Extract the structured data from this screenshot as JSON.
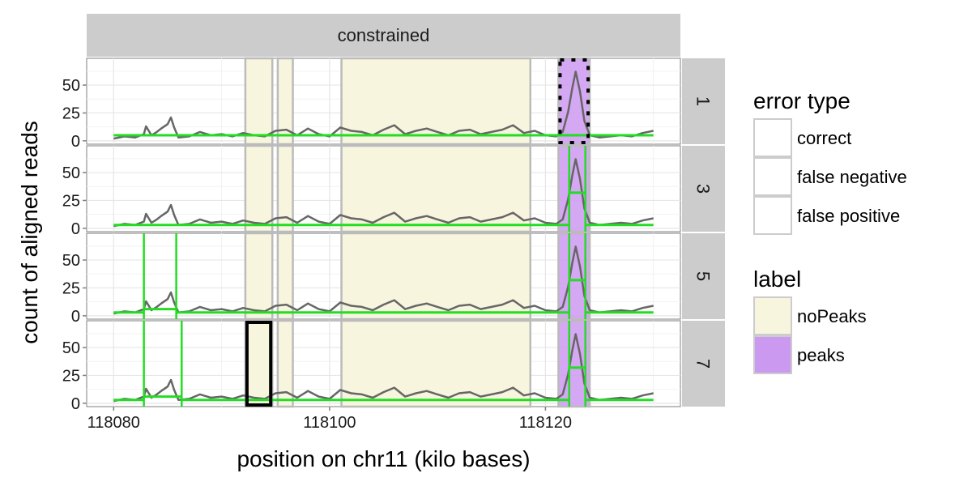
{
  "chart_data": {
    "type": "line",
    "title": "",
    "facet_column_label": "constrained",
    "panels": [
      "1",
      "3",
      "5",
      "7"
    ],
    "xlabel": "position on chr11 (kilo bases)",
    "ylabel": "count of aligned reads",
    "xlim": [
      118077.5,
      118132.5
    ],
    "ylim": [
      -3,
      74
    ],
    "x_ticks": [
      118080,
      118100,
      118120
    ],
    "x_tick_labels": [
      "118080",
      "118100",
      "118120"
    ],
    "y_ticks": [
      0,
      25,
      50
    ],
    "y_tick_labels": [
      "0",
      "25",
      "50"
    ],
    "grid": true,
    "colors": {
      "coverage": "#666666",
      "segments": "#22dd22",
      "noPeaks": "#f8f5de",
      "peaks": "#cc99f0",
      "strip": "#cccccc",
      "label_border": "#bbbbbb"
    },
    "label_regions": [
      {
        "label": "noPeaks",
        "start": 118092.2,
        "end": 118094.7
      },
      {
        "label": "noPeaks",
        "start": 118095.2,
        "end": 118096.6
      },
      {
        "label": "noPeaks",
        "start": 118101.1,
        "end": 118118.6
      },
      {
        "label": "peaks",
        "start": 118121.2,
        "end": 118124.1
      }
    ],
    "coverage": {
      "x": [
        118080,
        118081,
        118082,
        118082.8,
        118083,
        118083.5,
        118084,
        118084.4,
        118085,
        118085.3,
        118085.6,
        118086,
        118087,
        118088,
        118089,
        118090,
        118091,
        118092,
        118093,
        118094,
        118095,
        118096,
        118097,
        118098,
        118099,
        118100,
        118101,
        118102,
        118103,
        118104,
        118105,
        118106,
        118107,
        118108,
        118109,
        118110,
        118111,
        118112,
        118113,
        118114,
        118115,
        118116,
        118117,
        118118,
        118119,
        118120,
        118121,
        118121.6,
        118122.1,
        118122.5,
        118122.8,
        118123.2,
        118123.6,
        118124.1,
        118125,
        118126,
        118127,
        118128,
        118129,
        118130
      ],
      "y": [
        2,
        4,
        3,
        6,
        13,
        5,
        8,
        11,
        15,
        21,
        12,
        3,
        4,
        8,
        5,
        6,
        4,
        7,
        5,
        4,
        9,
        10,
        5,
        11,
        6,
        4,
        12,
        9,
        8,
        5,
        10,
        14,
        6,
        9,
        11,
        8,
        5,
        9,
        10,
        6,
        8,
        10,
        14,
        7,
        9,
        5,
        4,
        8,
        26,
        48,
        62,
        44,
        18,
        5,
        3,
        4,
        5,
        4,
        7,
        9
      ]
    },
    "series": [
      {
        "panel": "1",
        "mean_segments": [
          {
            "start": 118080,
            "end": 118130,
            "mean": 5
          }
        ],
        "changepoints": []
      },
      {
        "panel": "3",
        "mean_segments": [
          {
            "start": 118080,
            "end": 118122.2,
            "mean": 3
          },
          {
            "start": 118122.2,
            "end": 118123.7,
            "mean": 32
          },
          {
            "start": 118123.7,
            "end": 118130,
            "mean": 3
          }
        ],
        "changepoints": [
          118122.2,
          118123.7
        ]
      },
      {
        "panel": "5",
        "mean_segments": [
          {
            "start": 118080,
            "end": 118082.8,
            "mean": 3
          },
          {
            "start": 118082.8,
            "end": 118085.8,
            "mean": 6
          },
          {
            "start": 118085.8,
            "end": 118122.2,
            "mean": 3
          },
          {
            "start": 118122.2,
            "end": 118123.7,
            "mean": 32
          },
          {
            "start": 118123.7,
            "end": 118130,
            "mean": 3
          }
        ],
        "changepoints": [
          118082.8,
          118085.8,
          118122.2,
          118123.7
        ]
      },
      {
        "panel": "7",
        "mean_segments": [
          {
            "start": 118080,
            "end": 118082.8,
            "mean": 3
          },
          {
            "start": 118082.8,
            "end": 118086.3,
            "mean": 6
          },
          {
            "start": 118086.3,
            "end": 118094.5,
            "mean": 3
          },
          {
            "start": 118094.5,
            "end": 118122.2,
            "mean": 3
          },
          {
            "start": 118122.2,
            "end": 118123.7,
            "mean": 32
          },
          {
            "start": 118123.7,
            "end": 118130,
            "mean": 3
          }
        ],
        "changepoints": [
          118082.8,
          118086.3,
          118094.5,
          118122.2,
          118123.7
        ]
      }
    ],
    "errors": [
      {
        "panel": "1",
        "start": 118121.2,
        "end": 118124.1,
        "type": "false negative"
      },
      {
        "panel": "7",
        "start": 118092.2,
        "end": 118094.7,
        "type": "false positive"
      }
    ],
    "legend": {
      "placement": "right",
      "groups": [
        {
          "title": "error type",
          "items": [
            {
              "label": "correct",
              "fill": "#ffffff"
            },
            {
              "label": "false negative",
              "fill": "#ffffff"
            },
            {
              "label": "false positive",
              "fill": "#ffffff"
            }
          ]
        },
        {
          "title": "label",
          "items": [
            {
              "label": "noPeaks",
              "fill": "#f8f5de"
            },
            {
              "label": "peaks",
              "fill": "#cc99f0"
            }
          ]
        }
      ]
    }
  }
}
